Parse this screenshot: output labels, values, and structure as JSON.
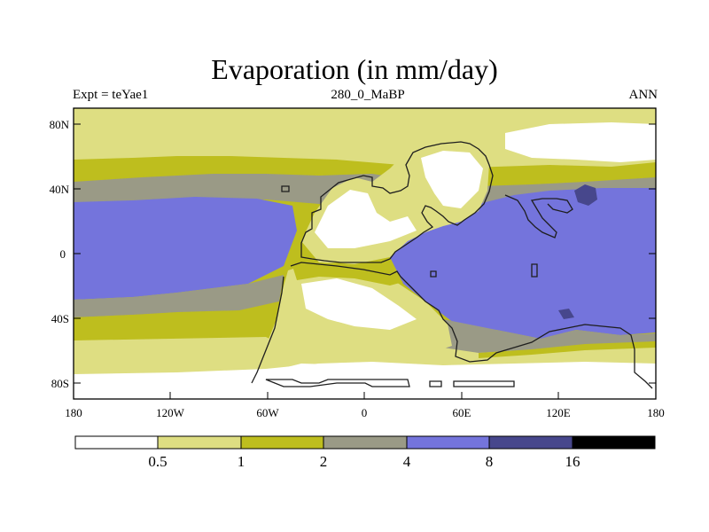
{
  "title": "Evaporation (in mm/day)",
  "subtitle_left": "Expt = teYae1",
  "subtitle_center": "280_0_MaBP",
  "subtitle_right": "ANN",
  "lat_labels": [
    "80N",
    "40N",
    "0",
    "40S",
    "80S"
  ],
  "lat_values": [
    80,
    40,
    0,
    -40,
    -80
  ],
  "lon_labels": [
    "180",
    "120W",
    "60W",
    "0",
    "60E",
    "120E",
    "180"
  ],
  "lon_values": [
    -180,
    -120,
    -60,
    0,
    60,
    120,
    180
  ],
  "lon_range": [
    -180,
    180
  ],
  "lat_range": [
    -90,
    90
  ],
  "colorbar": {
    "levels": [
      "0.5",
      "1",
      "2",
      "4",
      "8",
      "16"
    ],
    "colors": [
      "#ffffff",
      "#dede82",
      "#bebe1e",
      "#9a9a86",
      "#7474dc",
      "#47478c",
      "#000000"
    ]
  },
  "colors": {
    "white": "#ffffff",
    "pale": "#dede82",
    "olive": "#bebe1e",
    "grey": "#9a9a86",
    "blue": "#7474dc",
    "darkblue": "#47478c"
  }
}
